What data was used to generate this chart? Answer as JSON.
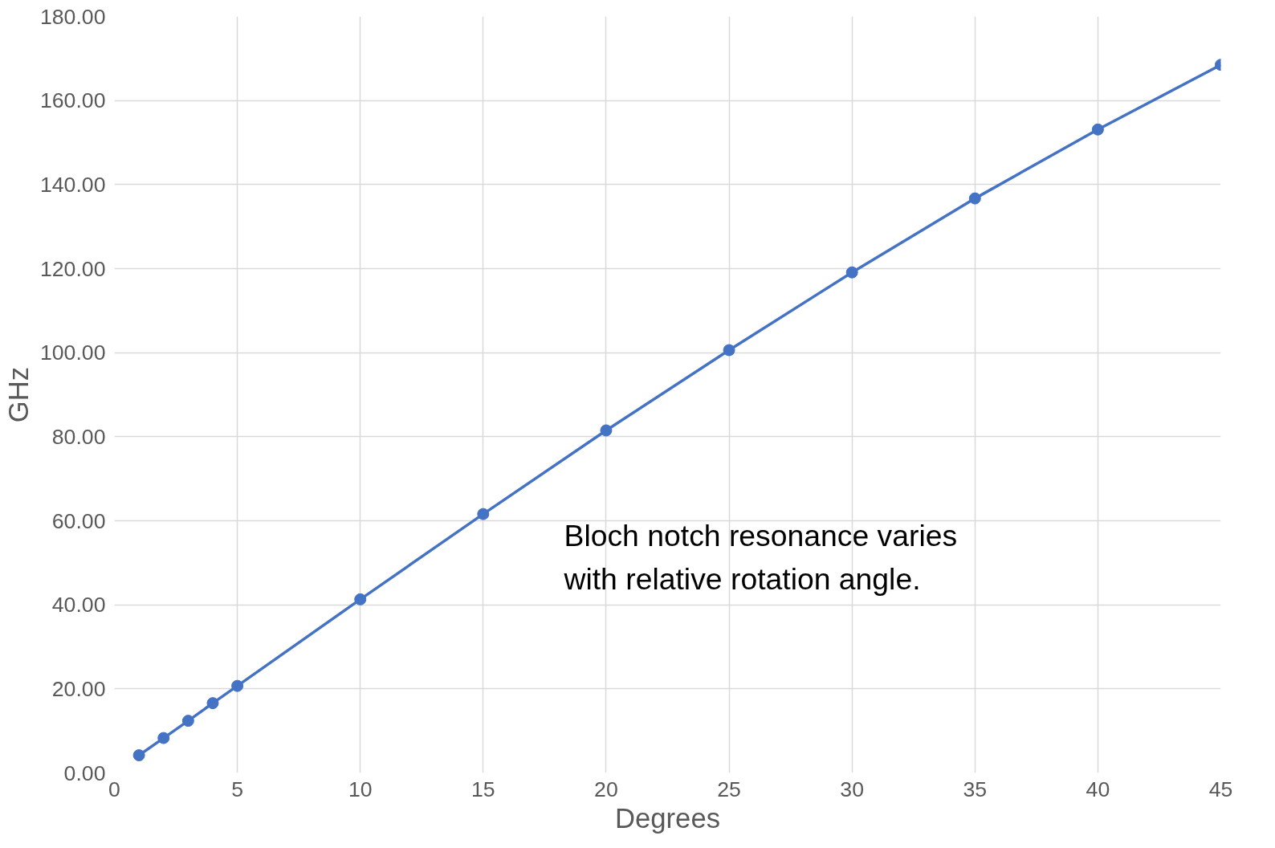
{
  "chart_data": {
    "type": "line",
    "xlabel": "Degrees",
    "ylabel": "GHz",
    "annotations": [
      "Bloch notch resonance varies\nwith relative rotation angle."
    ],
    "x": [
      1,
      2,
      3,
      4,
      5,
      10,
      15,
      20,
      25,
      30,
      35,
      40,
      45
    ],
    "series": [
      {
        "color": "#4472c4",
        "values": [
          4.2,
          8.3,
          12.4,
          16.6,
          20.7,
          41.3,
          61.6,
          81.5,
          100.6,
          119.1,
          136.7,
          153.1,
          168.5
        ]
      }
    ],
    "xlim": [
      0,
      45
    ],
    "xticks": [
      0,
      5,
      10,
      15,
      20,
      25,
      30,
      35,
      40,
      45
    ],
    "ylim": [
      0,
      180
    ],
    "yticks": [
      {
        "value": 0,
        "label": "0.00"
      },
      {
        "value": 20,
        "label": "20.00"
      },
      {
        "value": 40,
        "label": "40.00"
      },
      {
        "value": 60,
        "label": "60.00"
      },
      {
        "value": 80,
        "label": "80.00"
      },
      {
        "value": 100,
        "label": "100.00"
      },
      {
        "value": 120,
        "label": "120.00"
      },
      {
        "value": 140,
        "label": "140.00"
      },
      {
        "value": 160,
        "label": "160.00"
      },
      {
        "value": 180,
        "label": "180.00"
      }
    ],
    "grid": true,
    "marker": "circle",
    "line_style": "solid"
  }
}
